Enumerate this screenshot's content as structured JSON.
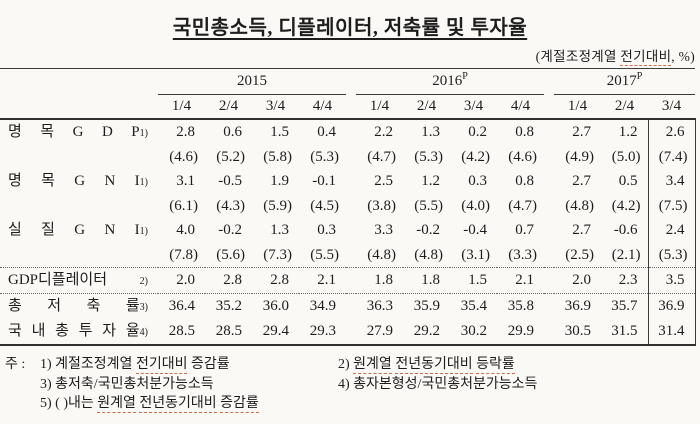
{
  "title": "국민총소득, 디플레이터, 저축률 및 투자율",
  "subtitle_parts": [
    {
      "t": "(계절조정계열 "
    },
    {
      "t": "전기대비",
      "u": true
    },
    {
      "t": ", %)"
    }
  ],
  "colors": {
    "spellcheck_underline": "#c96f4a",
    "rule_line": "#3c3c3c"
  },
  "table": {
    "year_groups": [
      {
        "label": "2015",
        "sup": "",
        "quarters": [
          "1/4",
          "2/4",
          "3/4",
          "4/4"
        ]
      },
      {
        "label": "2016",
        "sup": "P",
        "quarters": [
          "1/4",
          "2/4",
          "3/4",
          "4/4"
        ]
      },
      {
        "label": "2017",
        "sup": "P",
        "quarters": [
          "1/4",
          "2/4",
          "3/4"
        ]
      }
    ],
    "rows": [
      {
        "label": "명 목 G D P",
        "sup": "1)",
        "values": [
          "2.8",
          "0.6",
          "1.5",
          "0.4",
          "2.2",
          "1.3",
          "0.2",
          "0.8",
          "2.7",
          "1.2",
          "2.6"
        ],
        "sub": [
          "(4.6)",
          "(5.2)",
          "(5.8)",
          "(5.3)",
          "(4.7)",
          "(5.3)",
          "(4.2)",
          "(4.6)",
          "(4.9)",
          "(5.0)",
          "(7.4)"
        ]
      },
      {
        "label": "명 목 G N I",
        "sup": "1)",
        "values": [
          "3.1",
          "-0.5",
          "1.9",
          "-0.1",
          "2.5",
          "1.2",
          "0.3",
          "0.8",
          "2.7",
          "0.5",
          "3.4"
        ],
        "sub": [
          "(6.1)",
          "(4.3)",
          "(5.9)",
          "(4.5)",
          "(3.8)",
          "(5.5)",
          "(4.0)",
          "(4.7)",
          "(4.8)",
          "(4.2)",
          "(7.5)"
        ]
      },
      {
        "label": "실 질 G N I",
        "sup": "1)",
        "values": [
          "4.0",
          "-0.2",
          "1.3",
          "0.3",
          "3.3",
          "-0.2",
          "-0.4",
          "0.7",
          "2.7",
          "-0.6",
          "2.4"
        ],
        "sub": [
          "(7.8)",
          "(5.6)",
          "(7.3)",
          "(5.5)",
          "(4.8)",
          "(4.8)",
          "(3.1)",
          "(3.3)",
          "(2.5)",
          "(2.1)",
          "(5.3)"
        ]
      },
      {
        "label": "GDP디플레이터",
        "sup": "2)",
        "dotted_top": true,
        "values": [
          "2.0",
          "2.8",
          "2.8",
          "2.1",
          "1.8",
          "1.8",
          "1.5",
          "2.1",
          "2.0",
          "2.3",
          "3.5"
        ],
        "sub": null
      },
      {
        "label": "총 저 축 률",
        "sup": "3)",
        "dotted_top": true,
        "values": [
          "36.4",
          "35.2",
          "36.0",
          "34.9",
          "36.3",
          "35.9",
          "35.4",
          "35.8",
          "36.9",
          "35.7",
          "36.9"
        ],
        "sub": null
      },
      {
        "label": "국 내 총 투 자 율",
        "sup": "4)",
        "values": [
          "28.5",
          "28.5",
          "29.4",
          "29.3",
          "27.9",
          "29.2",
          "30.2",
          "29.9",
          "30.5",
          "31.5",
          "31.4"
        ],
        "sub": null
      }
    ]
  },
  "footnotes": {
    "marker": "주 :",
    "rows": [
      {
        "left": [
          {
            "t": "1) 계절조정계열 "
          },
          {
            "t": "전기대비",
            "u": true
          },
          {
            "t": " 증감률"
          }
        ],
        "right": [
          {
            "t": "2) "
          },
          {
            "t": "원계열",
            "u": true
          },
          {
            "t": " "
          },
          {
            "t": "전년동기대비",
            "u": true
          },
          {
            "t": " "
          },
          {
            "t": "등락률",
            "u": true
          }
        ]
      },
      {
        "left": [
          {
            "t": "3) 총저축/국민총처분가능소득"
          }
        ],
        "right": [
          {
            "t": "4) 총자본형성/국민총처분가능소득"
          }
        ]
      },
      {
        "left": [
          {
            "t": "5) ( )내는 "
          },
          {
            "t": "원계열",
            "u": true
          },
          {
            "t": " "
          },
          {
            "t": "전년동기대비",
            "u": true
          },
          {
            "t": " "
          },
          {
            "t": "증감률",
            "u": true
          }
        ],
        "right": null
      }
    ]
  }
}
